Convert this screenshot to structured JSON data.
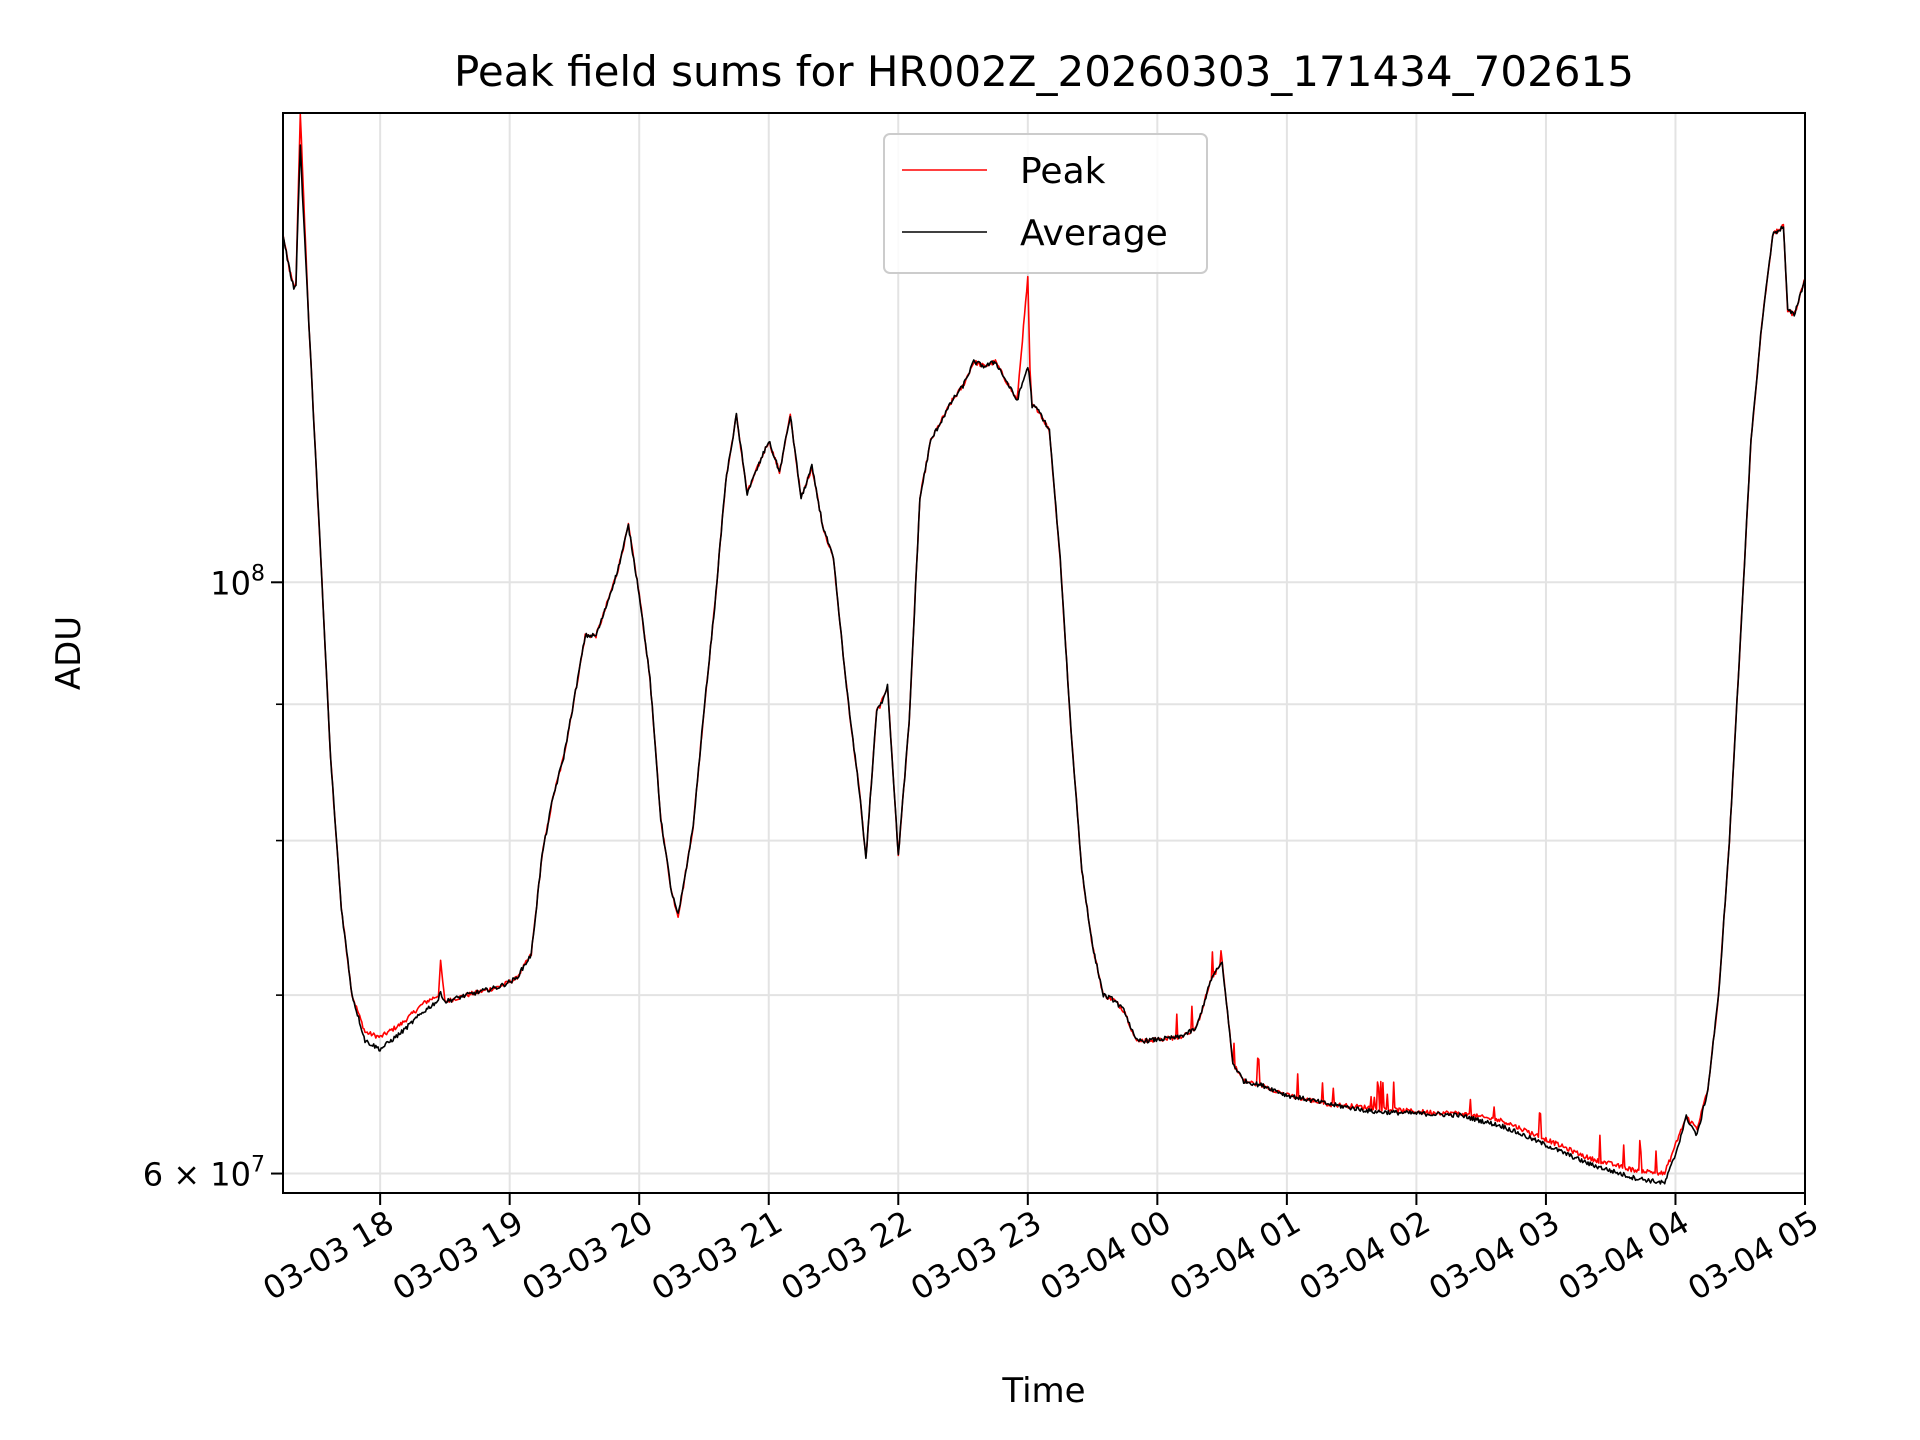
{
  "chart_data": {
    "type": "line",
    "title": "Peak field sums for HR002Z_20260303_171434_702615",
    "xlabel": "Time",
    "ylabel": "ADU",
    "yscale": "log",
    "ylim": [
      59000000,
      150000000
    ],
    "xlim": [
      "2026-03-03 17:15",
      "2026-03-04 05:00"
    ],
    "x_ticks": [
      {
        "time": "2026-03-03 18:00",
        "label": "03-03 18"
      },
      {
        "time": "2026-03-03 19:00",
        "label": "03-03 19"
      },
      {
        "time": "2026-03-03 20:00",
        "label": "03-03 20"
      },
      {
        "time": "2026-03-03 21:00",
        "label": "03-03 21"
      },
      {
        "time": "2026-03-03 22:00",
        "label": "03-03 22"
      },
      {
        "time": "2026-03-03 23:00",
        "label": "03-03 23"
      },
      {
        "time": "2026-03-04 00:00",
        "label": "03-04 00"
      },
      {
        "time": "2026-03-04 01:00",
        "label": "03-04 01"
      },
      {
        "time": "2026-03-04 02:00",
        "label": "03-04 02"
      },
      {
        "time": "2026-03-04 03:00",
        "label": "03-04 03"
      },
      {
        "time": "2026-03-04 04:00",
        "label": "03-04 04"
      },
      {
        "time": "2026-03-04 05:00",
        "label": "03-04 05"
      }
    ],
    "y_major_ticks": [
      {
        "value": 100000000,
        "label_base": "10",
        "label_exp": "8"
      },
      {
        "value": 60000000,
        "label_base": "6 × 10",
        "label_exp": "7"
      }
    ],
    "y_minor_ticks": [
      70000000,
      80000000,
      90000000
    ],
    "grid": true,
    "legend_position": "upper-center",
    "series": [
      {
        "name": "Peak",
        "color": "#ff0000",
        "x": [
          "2026-03-03 17:15",
          "2026-03-03 17:18",
          "2026-03-03 17:20",
          "2026-03-03 17:21",
          "2026-03-03 17:23",
          "2026-03-03 17:24",
          "2026-03-03 17:27",
          "2026-03-03 17:32",
          "2026-03-03 17:37",
          "2026-03-03 17:42",
          "2026-03-03 17:47",
          "2026-03-03 17:53",
          "2026-03-03 18:00",
          "2026-03-03 18:10",
          "2026-03-03 18:20",
          "2026-03-03 18:27",
          "2026-03-03 18:28",
          "2026-03-03 18:30",
          "2026-03-03 18:40",
          "2026-03-03 18:55",
          "2026-03-03 19:03",
          "2026-03-03 19:10",
          "2026-03-03 19:15",
          "2026-03-03 19:20",
          "2026-03-03 19:25",
          "2026-03-03 19:30",
          "2026-03-03 19:35",
          "2026-03-03 19:40",
          "2026-03-03 19:43",
          "2026-03-03 19:50",
          "2026-03-03 19:55",
          "2026-03-03 20:00",
          "2026-03-03 20:05",
          "2026-03-03 20:10",
          "2026-03-03 20:15",
          "2026-03-03 20:18",
          "2026-03-03 20:20",
          "2026-03-03 20:25",
          "2026-03-03 20:30",
          "2026-03-03 20:35",
          "2026-03-03 20:40",
          "2026-03-03 20:45",
          "2026-03-03 20:50",
          "2026-03-03 20:55",
          "2026-03-03 21:00",
          "2026-03-03 21:05",
          "2026-03-03 21:10",
          "2026-03-03 21:15",
          "2026-03-03 21:20",
          "2026-03-03 21:25",
          "2026-03-03 21:30",
          "2026-03-03 21:35",
          "2026-03-03 21:38",
          "2026-03-03 21:42",
          "2026-03-03 21:45",
          "2026-03-03 21:50",
          "2026-03-03 21:52",
          "2026-03-03 21:55",
          "2026-03-03 22:00",
          "2026-03-03 22:05",
          "2026-03-03 22:10",
          "2026-03-03 22:15",
          "2026-03-03 22:20",
          "2026-03-03 22:25",
          "2026-03-03 22:30",
          "2026-03-03 22:35",
          "2026-03-03 22:40",
          "2026-03-03 22:45",
          "2026-03-03 22:50",
          "2026-03-03 22:55",
          "2026-03-03 23:00",
          "2026-03-03 23:01",
          "2026-03-03 23:02",
          "2026-03-03 23:05",
          "2026-03-03 23:10",
          "2026-03-03 23:15",
          "2026-03-03 23:20",
          "2026-03-03 23:25",
          "2026-03-03 23:30",
          "2026-03-03 23:35",
          "2026-03-03 23:40",
          "2026-03-03 23:45",
          "2026-03-03 23:50",
          "2026-03-03 23:55",
          "2026-03-04 00:10",
          "2026-03-04 00:18",
          "2026-03-04 00:25",
          "2026-03-04 00:30",
          "2026-03-04 00:35",
          "2026-03-04 00:40",
          "2026-03-04 00:50",
          "2026-03-04 01:00",
          "2026-03-04 01:20",
          "2026-03-04 01:40",
          "2026-03-04 02:00",
          "2026-03-04 02:20",
          "2026-03-04 02:40",
          "2026-03-04 03:00",
          "2026-03-04 03:20",
          "2026-03-04 03:40",
          "2026-03-04 03:55",
          "2026-03-04 04:00",
          "2026-03-04 04:05",
          "2026-03-04 04:10",
          "2026-03-04 04:15",
          "2026-03-04 04:20",
          "2026-03-04 04:25",
          "2026-03-04 04:30",
          "2026-03-04 04:35",
          "2026-03-04 04:40",
          "2026-03-04 04:45",
          "2026-03-04 04:50",
          "2026-03-04 04:52",
          "2026-03-04 04:55",
          "2026-03-04 05:00"
        ],
        "y": [
          135000000,
          131000000,
          129000000,
          129500000,
          150000000,
          143000000,
          125000000,
          104000000,
          86000000,
          75500000,
          70000000,
          67800000,
          67500000,
          68300000,
          69500000,
          70000000,
          72000000,
          69600000,
          70000000,
          70500000,
          71000000,
          72500000,
          79000000,
          83000000,
          86000000,
          90500000,
          95500000,
          95500000,
          97000000,
          101000000,
          105000000,
          99000000,
          92000000,
          81500000,
          76500000,
          75000000,
          76500000,
          81000000,
          89500000,
          98000000,
          109000000,
          115500000,
          108000000,
          110500000,
          113000000,
          110000000,
          115500000,
          107500000,
          110500000,
          105000000,
          102000000,
          93000000,
          88500000,
          83500000,
          78800000,
          89500000,
          90000000,
          91500000,
          79000000,
          88500000,
          107500000,
          113000000,
          115000000,
          117000000,
          118500000,
          121000000,
          120500000,
          121000000,
          119000000,
          117000000,
          130000000,
          120000000,
          116500000,
          116000000,
          114000000,
          102000000,
          88000000,
          78000000,
          73000000,
          70000000,
          69700000,
          69000000,
          67300000,
          67300000,
          67500000,
          68000000,
          71000000,
          72000000,
          66000000,
          65000000,
          64700000,
          64200000,
          63700000,
          63500000,
          63300000,
          63200000,
          62800000,
          61800000,
          60800000,
          60200000,
          60000000,
          61500000,
          63000000,
          62400000,
          64500000,
          70000000,
          80000000,
          95000000,
          113000000,
          125000000,
          135000000,
          136000000,
          126500000,
          126000000,
          130000000
        ],
        "noise": true
      },
      {
        "name": "Average",
        "color": "#000000",
        "x": [
          "2026-03-03 17:15",
          "2026-03-03 17:18",
          "2026-03-03 17:20",
          "2026-03-03 17:21",
          "2026-03-03 17:23",
          "2026-03-03 17:24",
          "2026-03-03 17:27",
          "2026-03-03 17:32",
          "2026-03-03 17:37",
          "2026-03-03 17:42",
          "2026-03-03 17:47",
          "2026-03-03 17:53",
          "2026-03-03 18:00",
          "2026-03-03 18:10",
          "2026-03-03 18:20",
          "2026-03-03 18:27",
          "2026-03-03 18:28",
          "2026-03-03 18:30",
          "2026-03-03 18:40",
          "2026-03-03 18:55",
          "2026-03-03 19:03",
          "2026-03-03 19:10",
          "2026-03-03 19:15",
          "2026-03-03 19:20",
          "2026-03-03 19:25",
          "2026-03-03 19:30",
          "2026-03-03 19:35",
          "2026-03-03 19:40",
          "2026-03-03 19:43",
          "2026-03-03 19:50",
          "2026-03-03 19:55",
          "2026-03-03 20:00",
          "2026-03-03 20:05",
          "2026-03-03 20:10",
          "2026-03-03 20:15",
          "2026-03-03 20:18",
          "2026-03-03 20:20",
          "2026-03-03 20:25",
          "2026-03-03 20:30",
          "2026-03-03 20:35",
          "2026-03-03 20:40",
          "2026-03-03 20:45",
          "2026-03-03 20:50",
          "2026-03-03 20:55",
          "2026-03-03 21:00",
          "2026-03-03 21:05",
          "2026-03-03 21:10",
          "2026-03-03 21:15",
          "2026-03-03 21:20",
          "2026-03-03 21:25",
          "2026-03-03 21:30",
          "2026-03-03 21:35",
          "2026-03-03 21:38",
          "2026-03-03 21:42",
          "2026-03-03 21:45",
          "2026-03-03 21:50",
          "2026-03-03 21:52",
          "2026-03-03 21:55",
          "2026-03-03 22:00",
          "2026-03-03 22:05",
          "2026-03-03 22:10",
          "2026-03-03 22:15",
          "2026-03-03 22:20",
          "2026-03-03 22:25",
          "2026-03-03 22:30",
          "2026-03-03 22:35",
          "2026-03-03 22:40",
          "2026-03-03 22:45",
          "2026-03-03 22:50",
          "2026-03-03 22:55",
          "2026-03-03 23:00",
          "2026-03-03 23:01",
          "2026-03-03 23:02",
          "2026-03-03 23:05",
          "2026-03-03 23:10",
          "2026-03-03 23:15",
          "2026-03-03 23:20",
          "2026-03-03 23:25",
          "2026-03-03 23:30",
          "2026-03-03 23:35",
          "2026-03-03 23:40",
          "2026-03-03 23:45",
          "2026-03-03 23:50",
          "2026-03-03 23:55",
          "2026-03-04 00:10",
          "2026-03-04 00:18",
          "2026-03-04 00:25",
          "2026-03-04 00:30",
          "2026-03-04 00:35",
          "2026-03-04 00:40",
          "2026-03-04 00:50",
          "2026-03-04 01:00",
          "2026-03-04 01:20",
          "2026-03-04 01:40",
          "2026-03-04 02:00",
          "2026-03-04 02:20",
          "2026-03-04 02:40",
          "2026-03-04 03:00",
          "2026-03-04 03:20",
          "2026-03-04 03:40",
          "2026-03-04 03:55",
          "2026-03-04 04:00",
          "2026-03-04 04:05",
          "2026-03-04 04:10",
          "2026-03-04 04:15",
          "2026-03-04 04:20",
          "2026-03-04 04:25",
          "2026-03-04 04:30",
          "2026-03-04 04:35",
          "2026-03-04 04:40",
          "2026-03-04 04:45",
          "2026-03-04 04:50",
          "2026-03-04 04:52",
          "2026-03-04 04:55",
          "2026-03-04 05:00"
        ],
        "y": [
          135000000,
          131000000,
          129000000,
          129500000,
          146000000,
          140000000,
          125000000,
          104000000,
          86000000,
          75500000,
          70000000,
          67300000,
          66800000,
          67800000,
          69000000,
          69700000,
          70200000,
          69600000,
          70000000,
          70500000,
          71000000,
          72500000,
          79000000,
          83000000,
          86000000,
          90500000,
          95500000,
          95500000,
          97000000,
          101000000,
          105000000,
          99000000,
          92000000,
          81500000,
          76500000,
          75000000,
          76500000,
          81000000,
          89500000,
          98000000,
          109000000,
          115500000,
          108000000,
          110500000,
          113000000,
          110000000,
          115500000,
          107500000,
          110500000,
          105000000,
          102000000,
          93000000,
          88500000,
          83500000,
          78800000,
          89500000,
          90000000,
          91500000,
          79000000,
          88500000,
          107500000,
          113000000,
          115000000,
          117000000,
          118500000,
          121000000,
          120500000,
          121000000,
          119000000,
          117000000,
          120500000,
          119000000,
          116500000,
          116000000,
          114000000,
          102000000,
          88000000,
          78000000,
          73000000,
          70000000,
          69700000,
          69000000,
          67300000,
          67300000,
          67500000,
          68000000,
          71000000,
          72000000,
          66000000,
          65000000,
          64700000,
          64200000,
          63700000,
          63300000,
          63200000,
          63100000,
          62500000,
          61500000,
          60500000,
          59800000,
          59500000,
          61000000,
          63000000,
          62000000,
          64500000,
          70000000,
          80000000,
          95000000,
          113000000,
          125000000,
          135000000,
          136000000,
          126500000,
          126000000,
          130000000
        ],
        "noise": true
      }
    ]
  }
}
